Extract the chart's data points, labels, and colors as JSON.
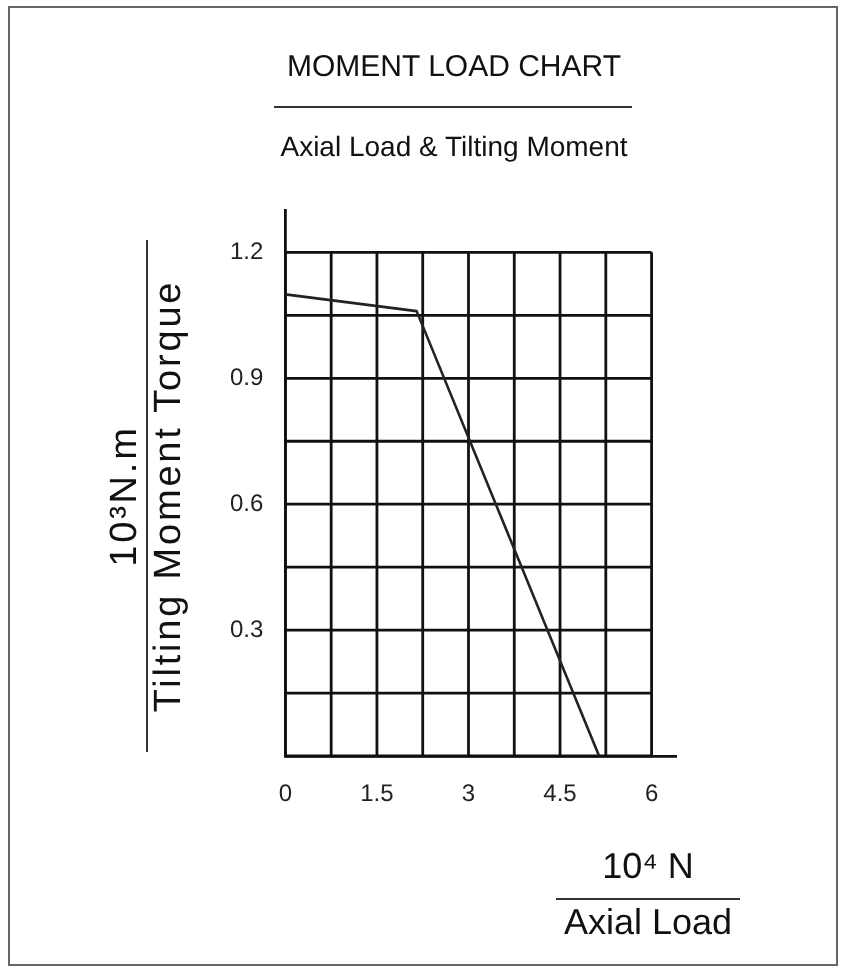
{
  "chart_data": {
    "type": "line",
    "title": "MOMENT LOAD CHART",
    "subtitle": "Axial Load & Tilting Moment",
    "xlabel": "10⁴ N\nAxial Load",
    "ylabel": "10³N.m\nTilting Moment Torque",
    "x": [
      0,
      2.15,
      5.14
    ],
    "series": [
      {
        "color": "#222222",
        "values": [
          1.1,
          1.06,
          0
        ]
      }
    ],
    "xlim": [
      0,
      6.4
    ],
    "ylim": [
      0,
      1.3
    ],
    "xticks": [
      0,
      {
        "value": 0.75,
        "label": null
      },
      1.5,
      {
        "value": 2.25,
        "label": null
      },
      3,
      {
        "value": 3.75,
        "label": null
      },
      4.5,
      {
        "value": 5.25,
        "label": null
      },
      6
    ],
    "yticks": [
      {
        "value": 0,
        "label": null
      },
      {
        "value": 0.15,
        "label": null
      },
      0.3,
      {
        "value": 0.45,
        "label": null
      },
      0.6,
      {
        "value": 0.75,
        "label": null
      },
      0.9,
      {
        "value": 1.05,
        "label": null
      },
      1.2
    ],
    "grid": true
  }
}
